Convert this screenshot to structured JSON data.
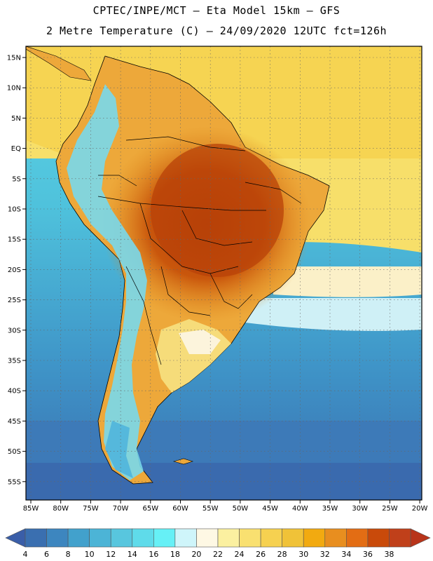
{
  "header": {
    "line1": "CPTEC/INPE/MCT –  Eta Model 15km – GFS",
    "line2": "2 Metre Temperature (C) – 24/09/2020 12UTC fct=126h"
  },
  "map": {
    "lat_ticks": [
      "15N",
      "10N",
      "5N",
      "EQ",
      "5S",
      "10S",
      "15S",
      "20S",
      "25S",
      "30S",
      "35S",
      "40S",
      "45S",
      "50S",
      "55S"
    ],
    "lon_ticks": [
      "85W",
      "80W",
      "75W",
      "70W",
      "65W",
      "60W",
      "55W",
      "50W",
      "45W",
      "40W",
      "35W",
      "30W",
      "25W",
      "20W"
    ]
  },
  "colorbar": {
    "labels": [
      "4",
      "6",
      "8",
      "10",
      "12",
      "14",
      "16",
      "18",
      "20",
      "22",
      "24",
      "26",
      "28",
      "30",
      "32",
      "34",
      "36",
      "38"
    ],
    "colors": [
      "#3a6fb0",
      "#3d86bf",
      "#42a1cc",
      "#4cb4d6",
      "#58c6de",
      "#5fdbea",
      "#66f0f6",
      "#cff5fa",
      "#fef8e4",
      "#fbf0a0",
      "#f9e070",
      "#f6d150",
      "#f0c238",
      "#f2aa10",
      "#e88e1f",
      "#e36d14",
      "#c94a0a",
      "#c0401a"
    ]
  }
}
